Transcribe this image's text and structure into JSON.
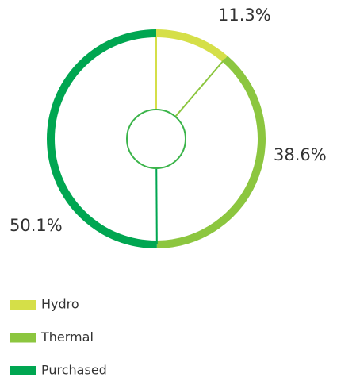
{
  "chart_data": {
    "type": "pie",
    "categories": [
      "Hydro",
      "Thermal",
      "Purchased"
    ],
    "values": [
      11.3,
      38.6,
      50.1
    ],
    "value_labels": [
      "11.3%",
      "38.6%",
      "50.1%"
    ],
    "colors": [
      "#d5df48",
      "#8cc63f",
      "#00a651"
    ],
    "legend": "bottom-left"
  }
}
